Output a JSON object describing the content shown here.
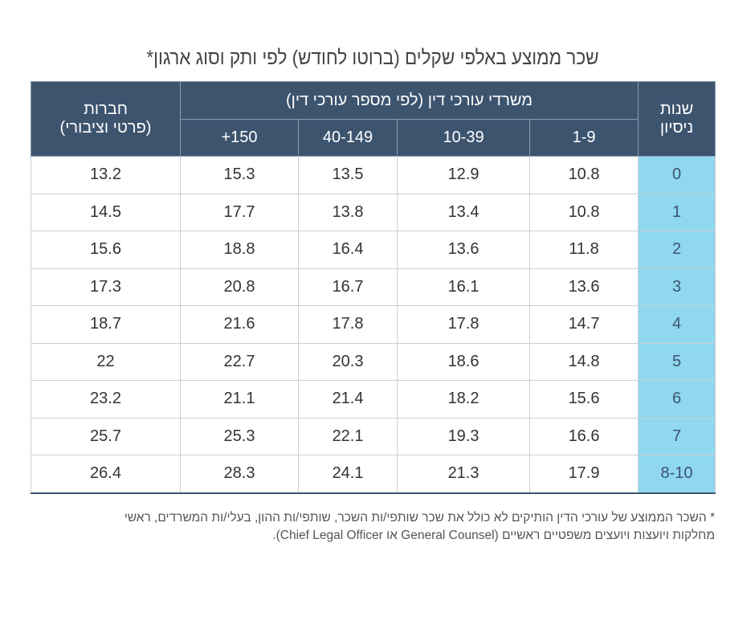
{
  "title": "שכר ממוצע באלפי שקלים (ברוטו לחודש) לפי ותק וסוג ארגון*",
  "headers": {
    "years": [
      "שנות",
      "ניסיון"
    ],
    "firms_group": "משרדי עורכי דין (לפי מספר עורכי דין)",
    "firm_sizes": [
      "1-9",
      "10-39",
      "40-149",
      "150+"
    ],
    "companies": [
      "חברות",
      "(פרטי וציבורי)"
    ]
  },
  "chart_data": {
    "type": "table",
    "title": "שכר ממוצע באלפי שקלים (ברוטו לחודש) לפי ותק וסוג ארגון*",
    "columns": [
      "שנות ניסיון",
      "1-9",
      "10-39",
      "40-149",
      "150+",
      "חברות (פרטי וציבורי)"
    ],
    "rows": [
      [
        "0",
        "10.8",
        "12.9",
        "13.5",
        "15.3",
        "13.2"
      ],
      [
        "1",
        "10.8",
        "13.4",
        "13.8",
        "17.7",
        "14.5"
      ],
      [
        "2",
        "11.8",
        "13.6",
        "16.4",
        "18.8",
        "15.6"
      ],
      [
        "3",
        "13.6",
        "16.1",
        "16.7",
        "20.8",
        "17.3"
      ],
      [
        "4",
        "14.7",
        "17.8",
        "17.8",
        "21.6",
        "18.7"
      ],
      [
        "5",
        "14.8",
        "18.6",
        "20.3",
        "22.7",
        "22"
      ],
      [
        "6",
        "15.6",
        "18.2",
        "21.4",
        "21.1",
        "23.2"
      ],
      [
        "7",
        "16.6",
        "19.3",
        "22.1",
        "25.3",
        "25.7"
      ],
      [
        "8-10",
        "17.9",
        "21.3",
        "24.1",
        "28.3",
        "26.4"
      ]
    ]
  },
  "footnote": [
    "* השכר הממוצע של עורכי הדין הותיקים לא כולל את שכר שותפי/ות השכר, שותפי/ות ההון, בעלי/ות המשרדים, ראשי",
    "מחלקות ויועצות ויועצים משפטיים ראשיים (General Counsel או Chief Legal Officer)."
  ],
  "colors": {
    "header": "#3d546f",
    "years_column": "#8fd8f0"
  }
}
